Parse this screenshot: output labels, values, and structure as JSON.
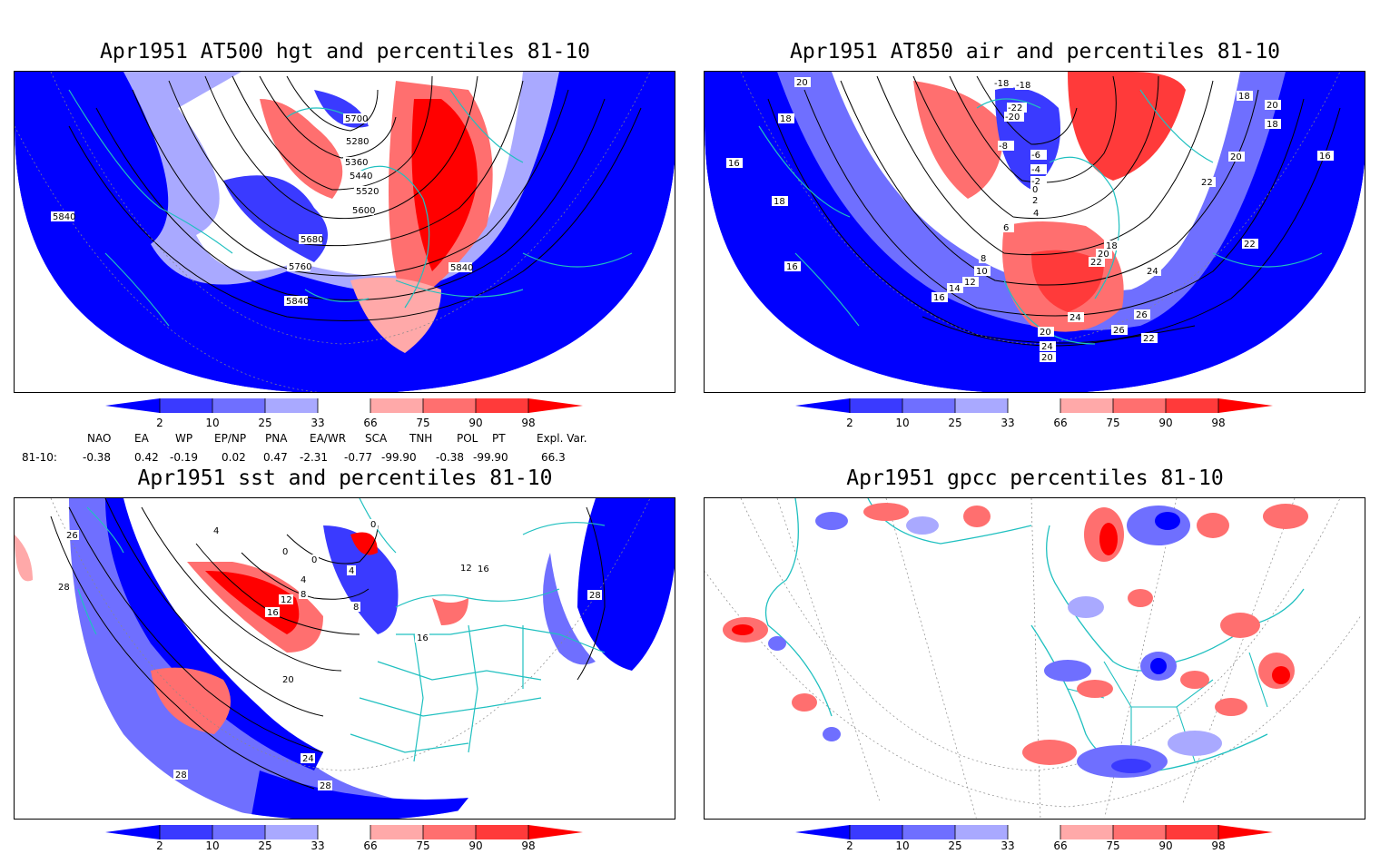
{
  "panels": {
    "hgt": {
      "title": "Apr1951 AT500 hgt and percentiles 81-10",
      "contour_labels": [
        "5700",
        "5280",
        "5360",
        "5440",
        "5520",
        "5600",
        "5680",
        "5760",
        "5840",
        "5840",
        "5840"
      ]
    },
    "air": {
      "title": "Apr1951 AT850 air and percentiles 81-10",
      "contour_labels": [
        "20",
        "18",
        "16",
        "18",
        "16",
        "-18",
        "-18",
        "-22",
        "-20",
        "-8",
        "-6",
        "-4",
        "-2",
        "0",
        "2",
        "4",
        "6",
        "8",
        "10",
        "12",
        "14",
        "16",
        "18",
        "20",
        "22",
        "24",
        "26",
        "26",
        "22",
        "20",
        "24",
        "20",
        "18",
        "20",
        "22",
        "20",
        "18",
        "16",
        "22",
        "24"
      ]
    },
    "sst": {
      "title": "Apr1951 sst and percentiles 81-10",
      "contour_labels": [
        "26",
        "28",
        "4",
        "0",
        "0",
        "0",
        "4",
        "4",
        "8",
        "12",
        "16",
        "8",
        "16",
        "20",
        "24",
        "28",
        "28",
        "28",
        "12",
        "16"
      ]
    },
    "gpcc": {
      "title": "Apr1951 gpcc percentiles 81-10"
    }
  },
  "colorbar": {
    "labels": [
      "2",
      "10",
      "25",
      "33",
      "66",
      "75",
      "90",
      "98"
    ],
    "colors": {
      "dark_blue": "#0000ff",
      "blue": "#3a3aff",
      "mid_blue": "#6f6fff",
      "light_blue": "#a9a9ff",
      "white": "#ffffff",
      "light_red": "#ffa9a9",
      "mid_red": "#ff6f6f",
      "red": "#ff3a3a",
      "dark_red": "#ff0000",
      "coast": "#20c0c0"
    }
  },
  "indices": {
    "headers": [
      "NAO",
      "EA",
      "WP",
      "EP/NP",
      "PNA",
      "EA/WR",
      "SCA",
      "TNH",
      "POL",
      "PT",
      "Expl. Var."
    ],
    "row_label": "81-10:",
    "values": [
      "-0.38",
      "0.42",
      "-0.19",
      "0.02",
      "0.47",
      "-2.31",
      "-0.77",
      "-99.90",
      "-0.38",
      "-99.90",
      "66.3"
    ]
  }
}
